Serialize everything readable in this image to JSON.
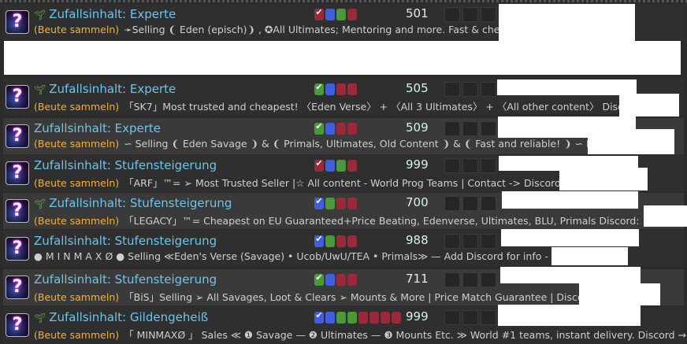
{
  "colors": {
    "tank": "#3f5fe0",
    "healer": "#4a9a3a",
    "dps": "#9a2a3a",
    "title": "#6ec4ea",
    "category": "#f2b233"
  },
  "listings": [
    {
      "duty": "Zufallsinhalt: Experte",
      "sprout": true,
      "category": "(Beute sammeln)",
      "description": "➛Selling ❨ Eden (episch)❩ , ✪All Ultimates; Mentoring and more. Fast & cheap ➛ Discord:",
      "roles": [
        "dps",
        "tank",
        "healer",
        "dps"
      ],
      "level": "501"
    },
    {
      "duty": "Zufallsinhalt: Experte",
      "sprout": true,
      "category": "(Beute sammeln)",
      "description": "「SK7」Most trusted and cheapest! 〈Eden Verse〉 + 〈All 3 Ultimates〉 + 〈All other content〉 Discord -",
      "roles": [
        "healer",
        "tank",
        "dps",
        "dps"
      ],
      "level": "505"
    },
    {
      "duty": "Zufallsinhalt: Experte",
      "sprout": false,
      "category": "(Beute sammeln)",
      "description": "∽ Selling ❨ Eden Savage ❩ & ❨ Primals, Ultimates, Old Content ❩ & ❨ Fast and reliable! ❩ ∽ Discord:",
      "roles": [
        "healer",
        "tank",
        "dps",
        "dps"
      ],
      "level": "509"
    },
    {
      "duty": "Zufallsinhalt: Stufensteigerung",
      "sprout": false,
      "category": "(Beute sammeln)",
      "description": "「ARF」™= ➢ Most Trusted Seller |☆ All content - World Prog Teams | Contact -> Discord:",
      "roles": [
        "dps",
        "tank",
        "healer",
        "dps"
      ],
      "level": "999"
    },
    {
      "duty": "Zufallsinhalt: Stufensteigerung",
      "sprout": true,
      "category": "(Beute sammeln)",
      "description": "「LEGACY」™= Cheapest on EU Guaranteed+Price Beating, Edenverse, Ultimates, BLU, Primals Discord:",
      "roles": [
        "tank",
        "healer",
        "dps",
        "dps"
      ],
      "level": "700"
    },
    {
      "duty": "Zufallsinhalt: Stufensteigerung",
      "sprout": false,
      "category": "",
      "description": "● M I N M A X Ø ● Selling ≪Eden's Verse (Savage) • Ucob/UwU/TEA • Primals≫ — Add Discord for info -",
      "roles": [
        "tank",
        "healer",
        "dps",
        "dps"
      ],
      "level": "988"
    },
    {
      "duty": "Zufallsinhalt: Stufensteigerung",
      "sprout": false,
      "category": "(Beute sammeln)",
      "description": "「BiS」Selling ➢ All Savages, Loot & Clears ➢ Mounts & More | Price Match Guarantee | Discord-",
      "roles": [
        "healer",
        "tank",
        "dps",
        "dps"
      ],
      "level": "711"
    },
    {
      "duty": "Zufallsinhalt: Gildengeheiß",
      "sprout": true,
      "category": "(Beute sammeln)",
      "description": "「 MINMAXØ 」 Sales ≪ ❶ Savage — ❷ Ultimates — ❸ Mounts Etc. ≫ World #1 teams, instant delivery. Discord → a...",
      "roles": [
        "tank",
        "tank",
        "healer",
        "healer",
        "dps",
        "dps",
        "dps",
        "dps"
      ],
      "level": "999"
    }
  ]
}
